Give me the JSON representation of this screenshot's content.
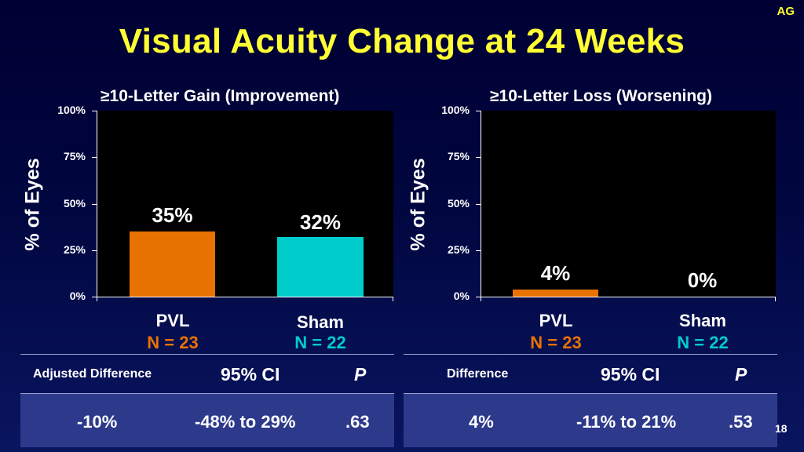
{
  "corner_tag": "AG",
  "title": "Visual Acuity Change at 24 Weeks",
  "colors": {
    "pvl": "#e87200",
    "sham": "#00cccc",
    "title": "#ffff33"
  },
  "chart_data": [
    {
      "type": "bar",
      "title": "≥10-Letter Gain (Improvement)",
      "ylabel": "% of Eyes",
      "ylim": [
        0,
        100
      ],
      "yticks": [
        "0%",
        "25%",
        "50%",
        "75%",
        "100%"
      ],
      "categories": [
        "PVL",
        "Sham"
      ],
      "n_labels": [
        "N = 23",
        "N = 22"
      ],
      "values": [
        35,
        32
      ],
      "value_labels": [
        "35%",
        "32%"
      ]
    },
    {
      "type": "bar",
      "title": "≥10-Letter Loss (Worsening)",
      "ylabel": "% of Eyes",
      "ylim": [
        0,
        100
      ],
      "yticks": [
        "0%",
        "25%",
        "50%",
        "75%",
        "100%"
      ],
      "categories": [
        "PVL",
        "Sham"
      ],
      "n_labels": [
        "N = 23",
        "N = 22"
      ],
      "values": [
        4,
        0
      ],
      "value_labels": [
        "4%",
        "0%"
      ]
    }
  ],
  "tables": [
    {
      "diff_header": "Adjusted Difference",
      "ci_header": "95% CI",
      "p_header": "P",
      "diff": "-10%",
      "ci": "-48% to 29%",
      "p": ".63"
    },
    {
      "diff_header": "Difference",
      "ci_header": "95% CI",
      "p_header": "P",
      "diff": "4%",
      "ci": "-11% to 21%",
      "p": ".53"
    }
  ],
  "page_number": "18"
}
